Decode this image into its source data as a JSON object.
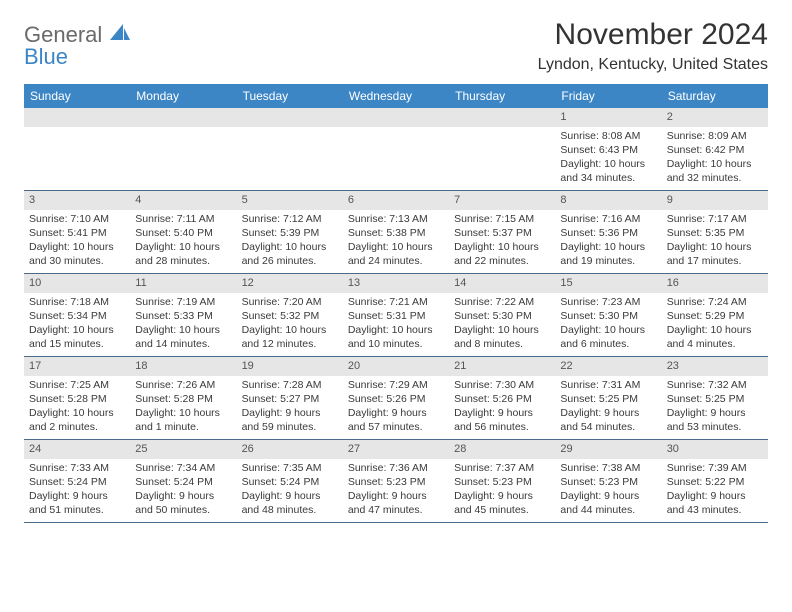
{
  "logo": {
    "textA": "General",
    "textB": "Blue"
  },
  "title": "November 2024",
  "location": "Lyndon, Kentucky, United States",
  "day_headers": [
    "Sunday",
    "Monday",
    "Tuesday",
    "Wednesday",
    "Thursday",
    "Friday",
    "Saturday"
  ],
  "colors": {
    "header_bg": "#3d86c6",
    "header_text": "#ffffff",
    "band_bg": "#e6e6e6",
    "text": "#3a3a3a",
    "logo_gray": "#6a6a6a",
    "logo_blue": "#3d86c6",
    "row_border": "#4a6a8a"
  },
  "weeks": [
    [
      null,
      null,
      null,
      null,
      null,
      {
        "n": "1",
        "sr": "Sunrise: 8:08 AM",
        "ss": "Sunset: 6:43 PM",
        "d1": "Daylight: 10 hours",
        "d2": "and 34 minutes."
      },
      {
        "n": "2",
        "sr": "Sunrise: 8:09 AM",
        "ss": "Sunset: 6:42 PM",
        "d1": "Daylight: 10 hours",
        "d2": "and 32 minutes."
      }
    ],
    [
      {
        "n": "3",
        "sr": "Sunrise: 7:10 AM",
        "ss": "Sunset: 5:41 PM",
        "d1": "Daylight: 10 hours",
        "d2": "and 30 minutes."
      },
      {
        "n": "4",
        "sr": "Sunrise: 7:11 AM",
        "ss": "Sunset: 5:40 PM",
        "d1": "Daylight: 10 hours",
        "d2": "and 28 minutes."
      },
      {
        "n": "5",
        "sr": "Sunrise: 7:12 AM",
        "ss": "Sunset: 5:39 PM",
        "d1": "Daylight: 10 hours",
        "d2": "and 26 minutes."
      },
      {
        "n": "6",
        "sr": "Sunrise: 7:13 AM",
        "ss": "Sunset: 5:38 PM",
        "d1": "Daylight: 10 hours",
        "d2": "and 24 minutes."
      },
      {
        "n": "7",
        "sr": "Sunrise: 7:15 AM",
        "ss": "Sunset: 5:37 PM",
        "d1": "Daylight: 10 hours",
        "d2": "and 22 minutes."
      },
      {
        "n": "8",
        "sr": "Sunrise: 7:16 AM",
        "ss": "Sunset: 5:36 PM",
        "d1": "Daylight: 10 hours",
        "d2": "and 19 minutes."
      },
      {
        "n": "9",
        "sr": "Sunrise: 7:17 AM",
        "ss": "Sunset: 5:35 PM",
        "d1": "Daylight: 10 hours",
        "d2": "and 17 minutes."
      }
    ],
    [
      {
        "n": "10",
        "sr": "Sunrise: 7:18 AM",
        "ss": "Sunset: 5:34 PM",
        "d1": "Daylight: 10 hours",
        "d2": "and 15 minutes."
      },
      {
        "n": "11",
        "sr": "Sunrise: 7:19 AM",
        "ss": "Sunset: 5:33 PM",
        "d1": "Daylight: 10 hours",
        "d2": "and 14 minutes."
      },
      {
        "n": "12",
        "sr": "Sunrise: 7:20 AM",
        "ss": "Sunset: 5:32 PM",
        "d1": "Daylight: 10 hours",
        "d2": "and 12 minutes."
      },
      {
        "n": "13",
        "sr": "Sunrise: 7:21 AM",
        "ss": "Sunset: 5:31 PM",
        "d1": "Daylight: 10 hours",
        "d2": "and 10 minutes."
      },
      {
        "n": "14",
        "sr": "Sunrise: 7:22 AM",
        "ss": "Sunset: 5:30 PM",
        "d1": "Daylight: 10 hours",
        "d2": "and 8 minutes."
      },
      {
        "n": "15",
        "sr": "Sunrise: 7:23 AM",
        "ss": "Sunset: 5:30 PM",
        "d1": "Daylight: 10 hours",
        "d2": "and 6 minutes."
      },
      {
        "n": "16",
        "sr": "Sunrise: 7:24 AM",
        "ss": "Sunset: 5:29 PM",
        "d1": "Daylight: 10 hours",
        "d2": "and 4 minutes."
      }
    ],
    [
      {
        "n": "17",
        "sr": "Sunrise: 7:25 AM",
        "ss": "Sunset: 5:28 PM",
        "d1": "Daylight: 10 hours",
        "d2": "and 2 minutes."
      },
      {
        "n": "18",
        "sr": "Sunrise: 7:26 AM",
        "ss": "Sunset: 5:28 PM",
        "d1": "Daylight: 10 hours",
        "d2": "and 1 minute."
      },
      {
        "n": "19",
        "sr": "Sunrise: 7:28 AM",
        "ss": "Sunset: 5:27 PM",
        "d1": "Daylight: 9 hours",
        "d2": "and 59 minutes."
      },
      {
        "n": "20",
        "sr": "Sunrise: 7:29 AM",
        "ss": "Sunset: 5:26 PM",
        "d1": "Daylight: 9 hours",
        "d2": "and 57 minutes."
      },
      {
        "n": "21",
        "sr": "Sunrise: 7:30 AM",
        "ss": "Sunset: 5:26 PM",
        "d1": "Daylight: 9 hours",
        "d2": "and 56 minutes."
      },
      {
        "n": "22",
        "sr": "Sunrise: 7:31 AM",
        "ss": "Sunset: 5:25 PM",
        "d1": "Daylight: 9 hours",
        "d2": "and 54 minutes."
      },
      {
        "n": "23",
        "sr": "Sunrise: 7:32 AM",
        "ss": "Sunset: 5:25 PM",
        "d1": "Daylight: 9 hours",
        "d2": "and 53 minutes."
      }
    ],
    [
      {
        "n": "24",
        "sr": "Sunrise: 7:33 AM",
        "ss": "Sunset: 5:24 PM",
        "d1": "Daylight: 9 hours",
        "d2": "and 51 minutes."
      },
      {
        "n": "25",
        "sr": "Sunrise: 7:34 AM",
        "ss": "Sunset: 5:24 PM",
        "d1": "Daylight: 9 hours",
        "d2": "and 50 minutes."
      },
      {
        "n": "26",
        "sr": "Sunrise: 7:35 AM",
        "ss": "Sunset: 5:24 PM",
        "d1": "Daylight: 9 hours",
        "d2": "and 48 minutes."
      },
      {
        "n": "27",
        "sr": "Sunrise: 7:36 AM",
        "ss": "Sunset: 5:23 PM",
        "d1": "Daylight: 9 hours",
        "d2": "and 47 minutes."
      },
      {
        "n": "28",
        "sr": "Sunrise: 7:37 AM",
        "ss": "Sunset: 5:23 PM",
        "d1": "Daylight: 9 hours",
        "d2": "and 45 minutes."
      },
      {
        "n": "29",
        "sr": "Sunrise: 7:38 AM",
        "ss": "Sunset: 5:23 PM",
        "d1": "Daylight: 9 hours",
        "d2": "and 44 minutes."
      },
      {
        "n": "30",
        "sr": "Sunrise: 7:39 AM",
        "ss": "Sunset: 5:22 PM",
        "d1": "Daylight: 9 hours",
        "d2": "and 43 minutes."
      }
    ]
  ]
}
